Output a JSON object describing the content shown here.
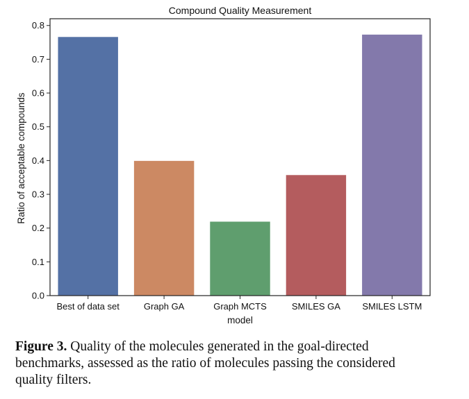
{
  "chart_data": {
    "type": "bar",
    "title": "Compound Quality Measurement",
    "xlabel": "model",
    "ylabel": "Ratio of acceptable compounds",
    "categories": [
      "Best of data set",
      "Graph GA",
      "Graph MCTS",
      "SMILES GA",
      "SMILES LSTM"
    ],
    "values": [
      0.766,
      0.399,
      0.219,
      0.357,
      0.773
    ],
    "colors": [
      "#5471a5",
      "#cc8963",
      "#5f9e6e",
      "#b45c5e",
      "#8379ab"
    ],
    "ylim": [
      0,
      0.82
    ],
    "yticks": [
      0.0,
      0.1,
      0.2,
      0.3,
      0.4,
      0.5,
      0.6,
      0.7,
      0.8
    ],
    "ytick_labels": [
      "0.0",
      "0.1",
      "0.2",
      "0.3",
      "0.4",
      "0.5",
      "0.6",
      "0.7",
      "0.8"
    ],
    "grid": false,
    "legend": "none"
  },
  "caption": {
    "label": "Figure 3.",
    "text": " Quality of the molecules generated in the goal-directed benchmarks, assessed as the ratio of molecules passing the considered quality filters."
  }
}
